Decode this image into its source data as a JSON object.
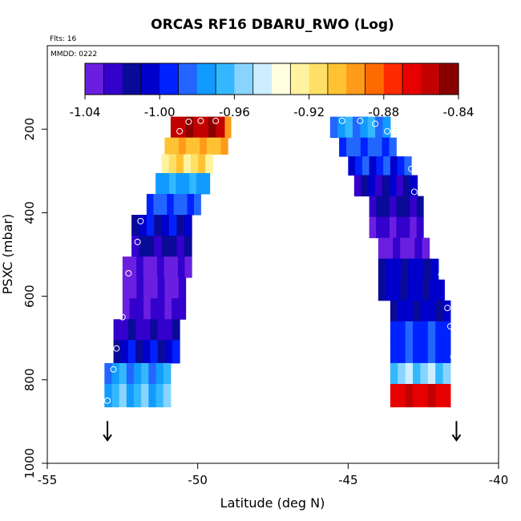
{
  "chart_data": {
    "type": "heatmap",
    "title": "ORCAS RF16 DBARU_RWO (Log)",
    "flts_label": "Flts: 16",
    "mmdd_label": "MMDD: 0222",
    "xlabel": "Latitude (deg N)",
    "ylabel": "PSXC (mbar)",
    "xlim": [
      -55,
      -40
    ],
    "ylim": [
      1000,
      0
    ],
    "x_ticks": [
      -55,
      -50,
      -45,
      -40
    ],
    "x_tick_labels": [
      "-55",
      "-50",
      "-45",
      "-40"
    ],
    "y_ticks": [
      200,
      400,
      600,
      800,
      1000
    ],
    "y_tick_labels": [
      "200",
      "400",
      "600",
      "800",
      "1000"
    ],
    "colorbar": {
      "vmin": -1.04,
      "vmax": -0.84,
      "ticks": [
        -1.04,
        -1.0,
        -0.96,
        -0.92,
        -0.88,
        -0.84
      ],
      "tick_labels": [
        "-1.04",
        "-1.00",
        "-0.96",
        "-0.92",
        "-0.88",
        "-0.84"
      ],
      "colors": [
        "#6a1fe0",
        "#3300cc",
        "#0a0a99",
        "#0000cc",
        "#0022ff",
        "#2266ff",
        "#119bff",
        "#33b8ff",
        "#88d4ff",
        "#cceeff",
        "#ffffe0",
        "#fff3a0",
        "#ffe066",
        "#ffc233",
        "#ff9a1a",
        "#ff6a00",
        "#ff2a00",
        "#e60000",
        "#c20000",
        "#8a0000"
      ]
    },
    "cells": [
      {
        "lon0": -50.9,
        "lon1": -48.9,
        "p0": 170,
        "p1": 220,
        "v": -0.852
      },
      {
        "lon0": -49.1,
        "lon1": -48.9,
        "p0": 170,
        "p1": 220,
        "v": -0.885
      },
      {
        "lon0": -51.1,
        "lon1": -49.0,
        "p0": 220,
        "p1": 260,
        "v": -0.9
      },
      {
        "lon0": -51.2,
        "lon1": -49.5,
        "p0": 260,
        "p1": 305,
        "v": -0.915
      },
      {
        "lon0": -51.4,
        "lon1": -49.6,
        "p0": 305,
        "p1": 355,
        "v": -0.972
      },
      {
        "lon0": -51.7,
        "lon1": -49.9,
        "p0": 355,
        "p1": 405,
        "v": -0.99
      },
      {
        "lon0": -52.2,
        "lon1": -50.2,
        "p0": 405,
        "p1": 455,
        "v": -1.005
      },
      {
        "lon0": -52.2,
        "lon1": -50.2,
        "p0": 455,
        "p1": 505,
        "v": -1.02
      },
      {
        "lon0": -52.5,
        "lon1": -50.2,
        "p0": 505,
        "p1": 555,
        "v": -1.035
      },
      {
        "lon0": -52.5,
        "lon1": -50.4,
        "p0": 555,
        "p1": 605,
        "v": -1.035
      },
      {
        "lon0": -52.5,
        "lon1": -50.4,
        "p0": 605,
        "p1": 655,
        "v": -1.028
      },
      {
        "lon0": -52.8,
        "lon1": -50.6,
        "p0": 655,
        "p1": 705,
        "v": -1.022
      },
      {
        "lon0": -52.8,
        "lon1": -50.6,
        "p0": 705,
        "p1": 760,
        "v": -1.005
      },
      {
        "lon0": -53.1,
        "lon1": -50.9,
        "p0": 760,
        "p1": 810,
        "v": -0.975
      },
      {
        "lon0": -53.1,
        "lon1": -50.9,
        "p0": 810,
        "p1": 865,
        "v": -0.965
      },
      {
        "lon0": -45.6,
        "lon1": -43.6,
        "p0": 170,
        "p1": 220,
        "v": -0.975
      },
      {
        "lon0": -45.3,
        "lon1": -43.4,
        "p0": 220,
        "p1": 265,
        "v": -0.988
      },
      {
        "lon0": -45.0,
        "lon1": -42.9,
        "p0": 265,
        "p1": 310,
        "v": -0.995
      },
      {
        "lon0": -44.8,
        "lon1": -42.7,
        "p0": 310,
        "p1": 360,
        "v": -1.015
      },
      {
        "lon0": -44.3,
        "lon1": -42.5,
        "p0": 360,
        "p1": 410,
        "v": -1.02
      },
      {
        "lon0": -44.3,
        "lon1": -42.5,
        "p0": 410,
        "p1": 460,
        "v": -1.03
      },
      {
        "lon0": -44.0,
        "lon1": -42.3,
        "p0": 460,
        "p1": 510,
        "v": -1.035
      },
      {
        "lon0": -44.0,
        "lon1": -42.0,
        "p0": 510,
        "p1": 560,
        "v": -1.01
      },
      {
        "lon0": -44.0,
        "lon1": -41.8,
        "p0": 560,
        "p1": 610,
        "v": -1.01
      },
      {
        "lon0": -43.6,
        "lon1": -41.6,
        "p0": 610,
        "p1": 660,
        "v": -1.01
      },
      {
        "lon0": -43.6,
        "lon1": -41.6,
        "p0": 660,
        "p1": 710,
        "v": -0.993
      },
      {
        "lon0": -43.6,
        "lon1": -41.6,
        "p0": 710,
        "p1": 760,
        "v": -0.993
      },
      {
        "lon0": -43.6,
        "lon1": -41.6,
        "p0": 760,
        "p1": 810,
        "v": -0.955
      },
      {
        "lon0": -43.6,
        "lon1": -41.6,
        "p0": 810,
        "p1": 865,
        "v": -0.862
      }
    ],
    "points": [
      {
        "lat": -50.6,
        "p": 205
      },
      {
        "lat": -50.3,
        "p": 182
      },
      {
        "lat": -49.9,
        "p": 180
      },
      {
        "lat": -49.4,
        "p": 180
      },
      {
        "lat": -45.2,
        "p": 180
      },
      {
        "lat": -44.6,
        "p": 180
      },
      {
        "lat": -44.1,
        "p": 187
      },
      {
        "lat": -43.7,
        "p": 205
      },
      {
        "lat": -42.9,
        "p": 295
      },
      {
        "lat": -42.8,
        "p": 350
      },
      {
        "lat": -51.9,
        "p": 420
      },
      {
        "lat": -52.0,
        "p": 470
      },
      {
        "lat": -52.3,
        "p": 545
      },
      {
        "lat": -52.5,
        "p": 650
      },
      {
        "lat": -52.7,
        "p": 725
      },
      {
        "lat": -52.8,
        "p": 775
      },
      {
        "lat": -53.0,
        "p": 850
      },
      {
        "lat": -41.9,
        "p": 548
      },
      {
        "lat": -41.7,
        "p": 628
      },
      {
        "lat": -41.6,
        "p": 672
      },
      {
        "lat": -41.5,
        "p": 745
      }
    ],
    "arrows": [
      {
        "lat": -53.0,
        "p": 895
      },
      {
        "lat": -41.4,
        "p": 895
      }
    ]
  }
}
